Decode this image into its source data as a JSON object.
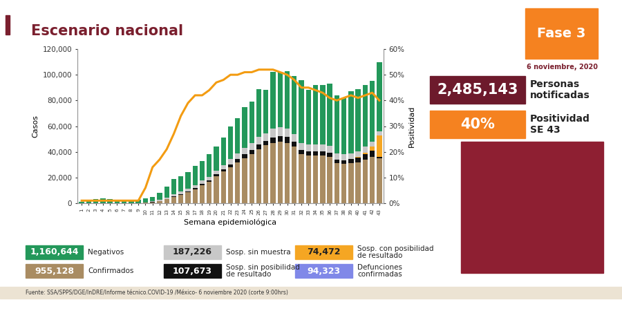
{
  "chart_data": {
    "type": "bar",
    "title": "Escenario nacional",
    "stacked": true,
    "x_label": "Semana epidemiológica",
    "y_label": "Casos",
    "y2_label": "Positividad",
    "categories": [
      "1",
      "2",
      "3",
      "4",
      "5",
      "6",
      "7",
      "8",
      "9",
      "10",
      "11",
      "12",
      "13",
      "14",
      "15",
      "16",
      "17",
      "18",
      "19",
      "20",
      "21",
      "22",
      "23",
      "24",
      "25",
      "26",
      "27",
      "28",
      "29",
      "30",
      "31",
      "32",
      "33",
      "34",
      "35",
      "36",
      "37",
      "38",
      "39",
      "40",
      "41",
      "42",
      "43"
    ],
    "ylim": [
      0,
      120000
    ],
    "yticks": [
      0,
      {
        "value": 20000,
        "label": "20,000"
      },
      {
        "value": 40000,
        "label": "40,000"
      },
      {
        "value": 60000,
        "label": "60,000"
      },
      {
        "value": 80000,
        "label": "80,000"
      },
      {
        "value": 100000,
        "label": "100,000"
      },
      {
        "value": 120000,
        "label": "120,000"
      }
    ],
    "y2lim": [
      0,
      60
    ],
    "y2ticks": [
      {
        "value": 0,
        "label": "0%"
      },
      {
        "value": 10,
        "label": "10%"
      },
      {
        "value": 20,
        "label": "20%"
      },
      {
        "value": 30,
        "label": "30%"
      },
      {
        "value": 40,
        "label": "40%"
      },
      {
        "value": 50,
        "label": "50%"
      },
      {
        "value": 60,
        "label": "60%"
      }
    ],
    "series": [
      {
        "name": "Confirmados",
        "type": "bar",
        "color": "#a98c62",
        "total": "955,128",
        "values": [
          0,
          0,
          0,
          0,
          0,
          0,
          0,
          0,
          0,
          300,
          800,
          1500,
          3000,
          5000,
          6500,
          8500,
          11000,
          14000,
          16500,
          21000,
          24500,
          28000,
          32000,
          35000,
          38000,
          42000,
          45000,
          47000,
          48000,
          47000,
          44000,
          38000,
          37000,
          37000,
          37000,
          36000,
          31000,
          30500,
          31000,
          32000,
          34000,
          36000,
          35000
        ]
      },
      {
        "name": "Sosp. sin posibilidad de resultado",
        "type": "bar",
        "color": "#111111",
        "total": "107,673",
        "values": [
          0,
          0,
          0,
          0,
          0,
          0,
          0,
          0,
          0,
          100,
          200,
          300,
          400,
          500,
          600,
          700,
          800,
          1000,
          1200,
          1500,
          1800,
          2200,
          2500,
          3000,
          3200,
          3500,
          3500,
          4000,
          4000,
          4500,
          4000,
          3500,
          3500,
          3500,
          3500,
          3500,
          3000,
          3000,
          3500,
          3500,
          4000,
          5000,
          1000
        ]
      },
      {
        "name": "Sosp. con posibilidad de resultado",
        "type": "bar",
        "color": "#f5a623",
        "total": "74,472",
        "values": [
          0,
          0,
          0,
          0,
          0,
          0,
          0,
          0,
          0,
          0,
          0,
          0,
          0,
          0,
          0,
          0,
          0,
          0,
          0,
          0,
          0,
          0,
          0,
          0,
          0,
          0,
          0,
          0,
          0,
          0,
          0,
          0,
          0,
          0,
          0,
          0,
          0,
          0,
          0,
          500,
          1500,
          3000,
          17000
        ]
      },
      {
        "name": "Sosp. sin muestra",
        "type": "bar",
        "color": "#c8c8c8",
        "total": "187,226",
        "values": [
          100,
          100,
          200,
          200,
          200,
          200,
          200,
          200,
          200,
          300,
          500,
          700,
          1000,
          1500,
          1800,
          2000,
          2200,
          2500,
          2800,
          3000,
          3500,
          4000,
          4500,
          5000,
          5500,
          6000,
          6000,
          7000,
          7000,
          6500,
          6000,
          5500,
          5000,
          5000,
          5000,
          5000,
          4500,
          4500,
          4500,
          4500,
          4500,
          4000,
          3000
        ]
      },
      {
        "name": "Negativos",
        "type": "bar",
        "color": "#23985a",
        "total": "1,160,644",
        "values": [
          900,
          1900,
          2800,
          3300,
          2800,
          2600,
          2300,
          2500,
          2300,
          2800,
          3500,
          5500,
          8600,
          12000,
          12100,
          12800,
          15000,
          15500,
          17500,
          18500,
          21200,
          25800,
          27000,
          32000,
          32300,
          37500,
          33500,
          44000,
          43000,
          45000,
          45000,
          49000,
          42500,
          46500,
          46500,
          48500,
          45500,
          44000,
          48000,
          48500,
          48000,
          47000,
          54000
        ]
      },
      {
        "name": "Positividad",
        "type": "line",
        "axis": "y2",
        "color": "#f39c12",
        "values": [
          1,
          1,
          1,
          1,
          1,
          1,
          1,
          1,
          1,
          6,
          14,
          17,
          21,
          27,
          34,
          39,
          42,
          42,
          44,
          47,
          48,
          50,
          50,
          51,
          51,
          52,
          52,
          52,
          51,
          50,
          48,
          45,
          45,
          44,
          43,
          41,
          40,
          41,
          42,
          41,
          42,
          43,
          40
        ]
      }
    ]
  },
  "deaths": {
    "label": "Defunciones confirmadas",
    "value": "94,323",
    "color": "#8088e8"
  },
  "phase": {
    "text": "Fase 3",
    "color": "#f58220"
  },
  "date": "6 noviembre, 2020",
  "indicators": [
    {
      "value": "2,485,143",
      "label": "Personas notificadas",
      "color": "#6d1a2c"
    },
    {
      "value": "40%",
      "label": "Positividad SE 43",
      "color": "#f58220"
    }
  ],
  "source": "Fuente: SSA/SPPS/DGE/InDRE/Informe técnico.COVID-19 /México- 6 noviembre 2020 (corte 9:00hrs)"
}
